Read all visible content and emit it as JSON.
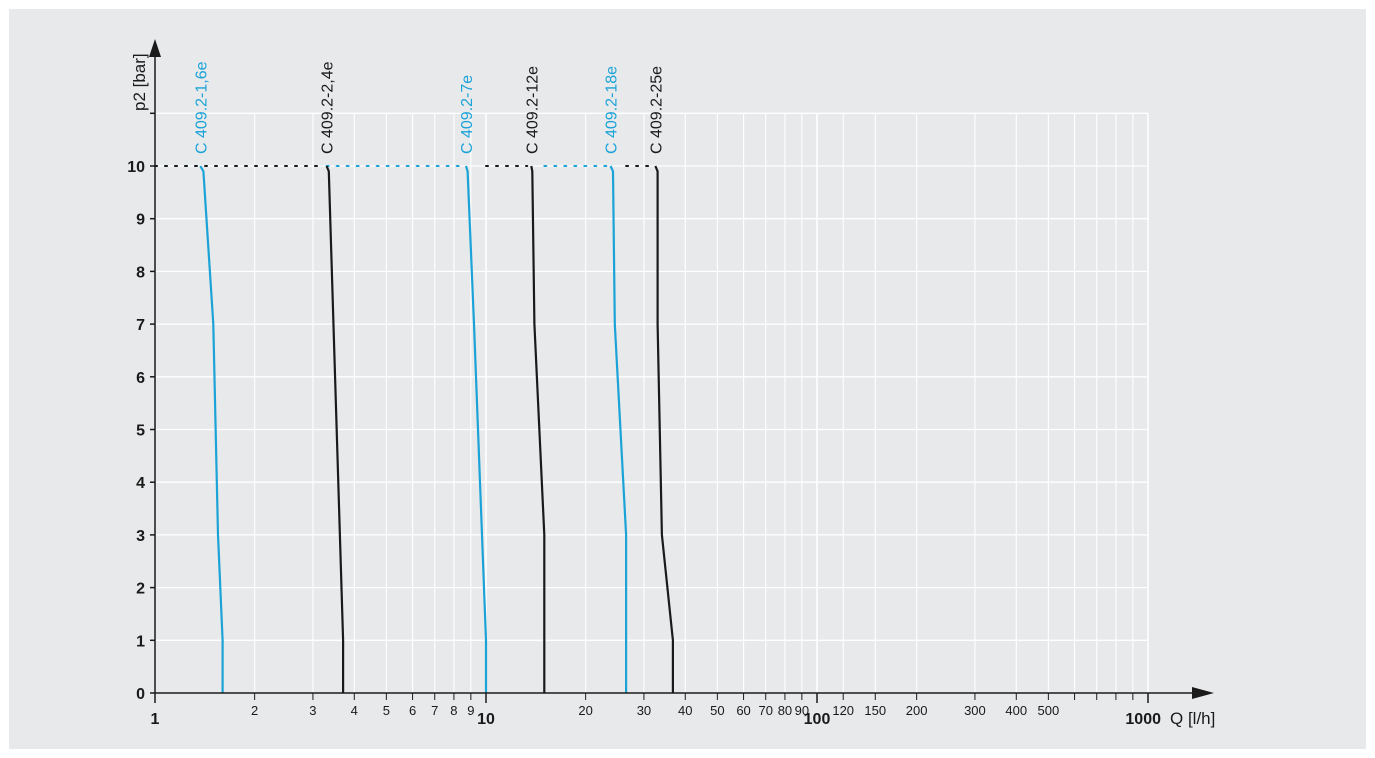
{
  "chart_data": {
    "type": "line",
    "x_scale": "log",
    "y_scale": "linear",
    "xlabel": "Q [l/h]",
    "ylabel": "p2 [bar]",
    "xlim": [
      1,
      1000
    ],
    "ylim": [
      0,
      11
    ],
    "grid": true,
    "y_ticks": [
      {
        "value": 0,
        "label": "0"
      },
      {
        "value": 1,
        "label": "1"
      },
      {
        "value": 2,
        "label": "2"
      },
      {
        "value": 3,
        "label": "3"
      },
      {
        "value": 4,
        "label": "4"
      },
      {
        "value": 5,
        "label": "5"
      },
      {
        "value": 6,
        "label": "6"
      },
      {
        "value": 7,
        "label": "7"
      },
      {
        "value": 8,
        "label": "8"
      },
      {
        "value": 9,
        "label": "9"
      },
      {
        "value": 10,
        "label": "10"
      },
      {
        "value": 11,
        "label": ""
      }
    ],
    "x_ticks": [
      {
        "value": 1,
        "label": "1",
        "major": true
      },
      {
        "value": 2,
        "label": "2"
      },
      {
        "value": 3,
        "label": "3"
      },
      {
        "value": 4,
        "label": "4"
      },
      {
        "value": 5,
        "label": "5"
      },
      {
        "value": 6,
        "label": "6"
      },
      {
        "value": 7,
        "label": "7"
      },
      {
        "value": 8,
        "label": "8"
      },
      {
        "value": 9,
        "label": "9"
      },
      {
        "value": 10,
        "label": "10",
        "major": true
      },
      {
        "value": 20,
        "label": "20"
      },
      {
        "value": 30,
        "label": "30"
      },
      {
        "value": 40,
        "label": "40"
      },
      {
        "value": 50,
        "label": "50"
      },
      {
        "value": 60,
        "label": "60"
      },
      {
        "value": 70,
        "label": "70"
      },
      {
        "value": 80,
        "label": "80"
      },
      {
        "value": 90,
        "label": "90"
      },
      {
        "value": 100,
        "label": "100",
        "major": true
      },
      {
        "value": 120,
        "label": "120"
      },
      {
        "value": 150,
        "label": "150"
      },
      {
        "value": 200,
        "label": "200"
      },
      {
        "value": 300,
        "label": "300"
      },
      {
        "value": 400,
        "label": "400"
      },
      {
        "value": 500,
        "label": "500"
      },
      {
        "value": 600,
        "label": ""
      },
      {
        "value": 700,
        "label": ""
      },
      {
        "value": 800,
        "label": ""
      },
      {
        "value": 900,
        "label": ""
      },
      {
        "value": 1000,
        "label": "1000",
        "major": true
      }
    ],
    "series": [
      {
        "name": "C 409.2-1,6e",
        "color": "#1ba3d8",
        "points": [
          [
            1.37,
            10
          ],
          [
            1.4,
            9.9
          ],
          [
            1.5,
            7
          ],
          [
            1.55,
            3
          ],
          [
            1.6,
            1
          ],
          [
            1.6,
            0
          ]
        ],
        "dotted_start": 1.0
      },
      {
        "name": "C 409.2-2,4e",
        "color": "#1a1a1a",
        "points": [
          [
            3.3,
            10
          ],
          [
            3.35,
            9.9
          ],
          [
            3.7,
            1
          ],
          [
            3.7,
            0
          ]
        ],
        "dotted_start": 1.0
      },
      {
        "name": "C 409.2-7e",
        "color": "#1ba3d8",
        "points": [
          [
            8.7,
            10
          ],
          [
            8.8,
            9.9
          ],
          [
            9.2,
            7
          ],
          [
            10.0,
            1
          ],
          [
            10.0,
            0
          ]
        ],
        "dotted_start": 3.3
      },
      {
        "name": "C 409.2-12e",
        "color": "#1a1a1a",
        "points": [
          [
            13.7,
            10
          ],
          [
            13.8,
            9.9
          ],
          [
            14.0,
            7
          ],
          [
            15.0,
            3
          ],
          [
            15.0,
            0
          ]
        ],
        "dotted_start": 10.0
      },
      {
        "name": "C 409.2-18e",
        "color": "#1ba3d8",
        "points": [
          [
            23.8,
            10
          ],
          [
            24.2,
            9.9
          ],
          [
            24.5,
            7
          ],
          [
            26.5,
            3
          ],
          [
            26.5,
            0
          ]
        ],
        "dotted_start": 15.0
      },
      {
        "name": "C 409.2-25e",
        "color": "#1a1a1a",
        "points": [
          [
            32.5,
            10
          ],
          [
            33.0,
            9.9
          ],
          [
            33.0,
            7
          ],
          [
            34.0,
            3
          ],
          [
            36.7,
            1
          ],
          [
            36.7,
            0
          ]
        ],
        "dotted_start": 26.5
      }
    ]
  }
}
